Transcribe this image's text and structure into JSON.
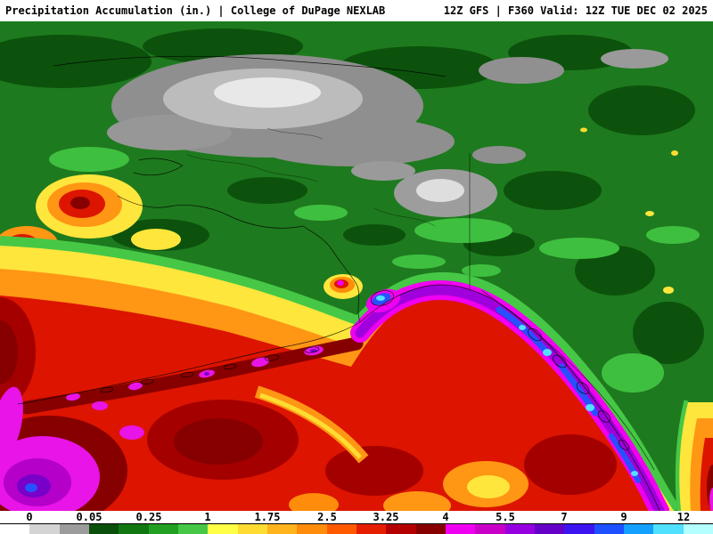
{
  "header": {
    "left_title": "Precipitation Accumulation (in.) | College of DuPage NEXLAB",
    "right_title": "12Z GFS | F360 Valid: 12Z TUE DEC 02 2025"
  },
  "colorbar": {
    "tick_labels": [
      "0",
      "0.05",
      "0.25",
      "1",
      "1.75",
      "2.5",
      "3.25",
      "4",
      "5.5",
      "7",
      "9",
      "12"
    ],
    "segment_colors": [
      "#ffffff",
      "#d4d4d4",
      "#9c9c9c",
      "#0a500a",
      "#117811",
      "#22a022",
      "#46c846",
      "#ffff46",
      "#ffdc32",
      "#ffb41e",
      "#ff8c0a",
      "#ff5a00",
      "#e61e00",
      "#b40000",
      "#870000",
      "#f000f0",
      "#c800c8",
      "#9600e1",
      "#6400c8",
      "#3c14f0",
      "#1e50ff",
      "#14a0ff",
      "#50e1ff",
      "#b4ffff"
    ]
  },
  "chart_data": {
    "type": "heatmap",
    "title": "Precipitation Accumulation (in.)",
    "source": "College of DuPage NEXLAB",
    "model": "GFS",
    "run": "12Z",
    "forecast_hour": "F360",
    "valid_time": "12Z TUE DEC 02 2025",
    "units": "in.",
    "colorbar_ticks": [
      0,
      0.05,
      0.25,
      1,
      1.75,
      2.5,
      3.25,
      4,
      5.5,
      7,
      9,
      12
    ],
    "legend_position": "bottom"
  }
}
